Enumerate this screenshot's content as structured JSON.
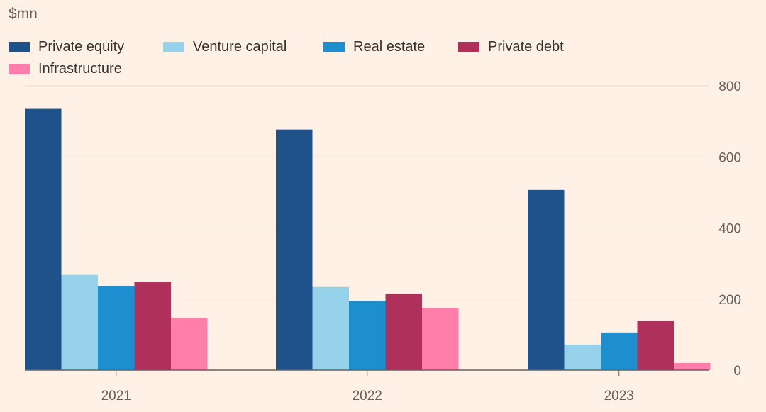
{
  "unit_label": "$mn",
  "legend": [
    {
      "label": "Private equity",
      "color": "#1F518B"
    },
    {
      "label": "Venture capital",
      "color": "#96D3EA"
    },
    {
      "label": "Real estate",
      "color": "#1E8FCE"
    },
    {
      "label": "Private debt",
      "color": "#B0305C"
    },
    {
      "label": "Infrastructure",
      "color": "#FF7FAA"
    }
  ],
  "colors": {
    "background": "#FFF1E5",
    "gridline": "#E6D9CE",
    "baseline": "#66605C"
  },
  "chart_data": {
    "type": "bar",
    "title": "",
    "xlabel": "",
    "ylabel": "$mn",
    "categories": [
      "2021",
      "2022",
      "2023"
    ],
    "series": [
      {
        "name": "Private equity",
        "color": "#1F518B",
        "values": [
          735,
          677,
          507
        ]
      },
      {
        "name": "Venture capital",
        "color": "#96D3EA",
        "values": [
          268,
          234,
          72
        ]
      },
      {
        "name": "Real estate",
        "color": "#1E8FCE",
        "values": [
          236,
          195,
          106
        ]
      },
      {
        "name": "Private debt",
        "color": "#B0305C",
        "values": [
          249,
          215,
          139
        ]
      },
      {
        "name": "Infrastructure",
        "color": "#FF7FAA",
        "values": [
          147,
          175,
          20
        ]
      }
    ],
    "ylim": [
      0,
      800
    ],
    "yticks": [
      "0",
      "200",
      "400",
      "600",
      "800"
    ],
    "ytick_values": [
      0,
      200,
      400,
      600,
      800
    ],
    "yaxis_side": "right",
    "grid": true,
    "legend_position": "top-left"
  }
}
